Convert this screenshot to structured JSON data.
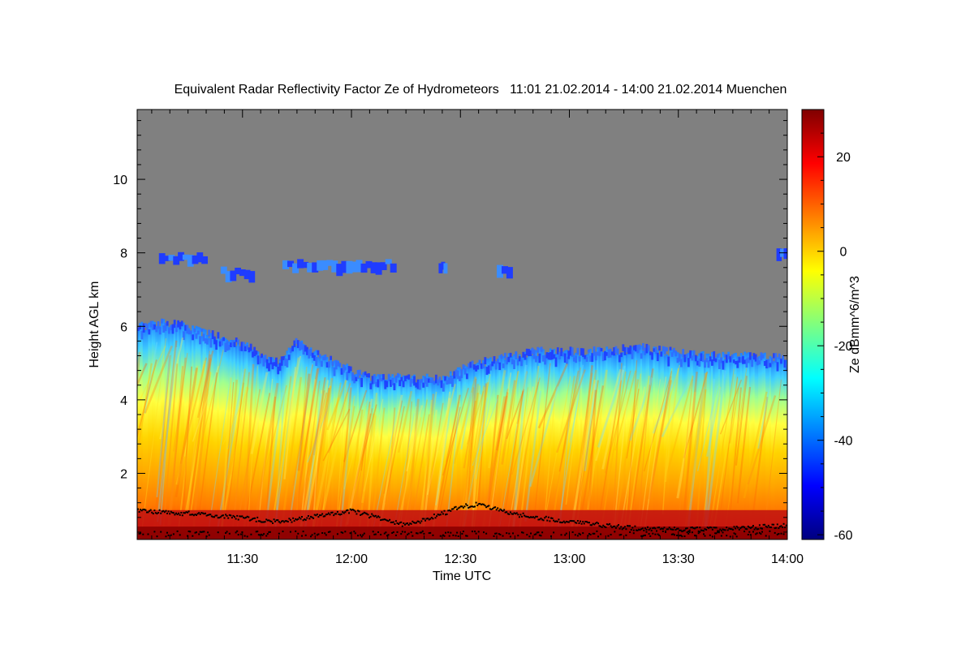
{
  "chart_data": {
    "type": "heatmap",
    "title": "Equivalent Radar Reflectivity Factor Ze of Hydrometeors   11:01 21.02.2014 - 14:00 21.02.2014 Muenchen",
    "xlabel": "Time UTC",
    "ylabel": "Height AGL km",
    "colorbar_label": "Ze dBmm^6/m^3",
    "x_start": "11:01",
    "x_end": "14:00",
    "xlim": [
      "11:01",
      "14:00"
    ],
    "x_ticks": [
      "11:30",
      "12:00",
      "12:30",
      "13:00",
      "13:30",
      "14:00"
    ],
    "ylim": [
      0.2,
      11.9
    ],
    "y_ticks": [
      2,
      4,
      6,
      8,
      10
    ],
    "y_tick_labels": [
      "2",
      "4",
      "6",
      "8",
      "10"
    ],
    "colorbar_range": [
      -61,
      30
    ],
    "colorbar_ticks": [
      20,
      0,
      -20,
      -40,
      -60
    ],
    "colorbar_tick_labels": [
      "20",
      "0",
      "-20",
      "-40",
      "-60"
    ],
    "colormap": [
      "#00007f",
      "#0000ff",
      "#007fff",
      "#00ffff",
      "#7fff7f",
      "#ffff00",
      "#ff7f00",
      "#ff0000",
      "#7f0000"
    ],
    "background_color": "#808080",
    "cloud_top_km": [
      {
        "time": "11:01",
        "height": 6.0
      },
      {
        "time": "11:10",
        "height": 6.1
      },
      {
        "time": "11:20",
        "height": 5.8
      },
      {
        "time": "11:30",
        "height": 5.5
      },
      {
        "time": "11:40",
        "height": 5.0
      },
      {
        "time": "11:45",
        "height": 5.6
      },
      {
        "time": "11:55",
        "height": 5.0
      },
      {
        "time": "12:05",
        "height": 4.6
      },
      {
        "time": "12:15",
        "height": 4.6
      },
      {
        "time": "12:25",
        "height": 4.6
      },
      {
        "time": "12:35",
        "height": 5.0
      },
      {
        "time": "12:50",
        "height": 5.3
      },
      {
        "time": "13:05",
        "height": 5.3
      },
      {
        "time": "13:20",
        "height": 5.4
      },
      {
        "time": "13:35",
        "height": 5.2
      },
      {
        "time": "13:50",
        "height": 5.2
      },
      {
        "time": "14:00",
        "height": 5.1
      }
    ],
    "upper_cloud_patches_km": [
      {
        "t_start": "11:07",
        "t_end": "11:20",
        "height": 7.9
      },
      {
        "t_start": "11:24",
        "t_end": "11:33",
        "height": 7.5
      },
      {
        "t_start": "11:41",
        "t_end": "12:12",
        "height": 7.7
      },
      {
        "t_start": "12:24",
        "t_end": "12:26",
        "height": 7.7
      },
      {
        "t_start": "12:40",
        "t_end": "12:44",
        "height": 7.6
      },
      {
        "t_start": "13:57",
        "t_end": "14:00",
        "height": 8.0
      }
    ],
    "ceilometer_cloud_base_km": [
      {
        "time": "11:01",
        "height": 1.0
      },
      {
        "time": "11:20",
        "height": 0.9
      },
      {
        "time": "11:40",
        "height": 0.7
      },
      {
        "time": "12:00",
        "height": 1.0
      },
      {
        "time": "12:15",
        "height": 0.6
      },
      {
        "time": "12:30",
        "height": 1.1
      },
      {
        "time": "12:35",
        "height": 1.2
      },
      {
        "time": "12:45",
        "height": 0.9
      },
      {
        "time": "13:00",
        "height": 0.7
      },
      {
        "time": "13:20",
        "height": 0.5
      },
      {
        "time": "13:40",
        "height": 0.5
      },
      {
        "time": "14:00",
        "height": 0.6
      }
    ]
  }
}
